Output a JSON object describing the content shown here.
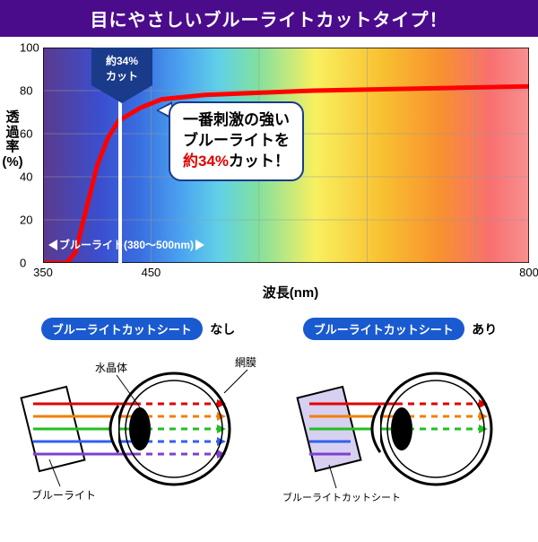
{
  "header": {
    "title": "目にやさしいブルーライトカットタイプ！"
  },
  "chart": {
    "type": "line",
    "ylabel_lines": [
      "透",
      "過",
      "率",
      "(%)"
    ],
    "xlabel": "波長(nm)",
    "xlim": [
      350,
      800
    ],
    "ylim": [
      0,
      100
    ],
    "xticks": [
      350,
      450,
      800
    ],
    "yticks": [
      0,
      20,
      40,
      60,
      80,
      100
    ],
    "yticks_grid": [
      0,
      20,
      40,
      60,
      80,
      100
    ],
    "xticks_grid": [
      350,
      450,
      550,
      650,
      750
    ],
    "curve_color": "#ff0000",
    "curve_points": [
      [
        350,
        0
      ],
      [
        365,
        0
      ],
      [
        372,
        0
      ],
      [
        380,
        5
      ],
      [
        390,
        25
      ],
      [
        400,
        45
      ],
      [
        410,
        58
      ],
      [
        420,
        66
      ],
      [
        440,
        72
      ],
      [
        460,
        76
      ],
      [
        500,
        78
      ],
      [
        550,
        79
      ],
      [
        600,
        80
      ],
      [
        700,
        81
      ],
      [
        800,
        82
      ]
    ],
    "white_line_x": 420,
    "arrow_badge": {
      "line1": "約34%",
      "line2": "カット"
    },
    "range_label": "ブルーライト(380〜500nm)",
    "callout": {
      "line1": "一番刺激の強い",
      "line2": "ブルーライトを",
      "line3_red": "約34%",
      "line3_black": "カット！"
    },
    "spectrum_stops": [
      [
        "#5b3a8e",
        0
      ],
      [
        "#3a4fd0",
        12
      ],
      [
        "#3a6fe0",
        20
      ],
      [
        "#4aa0f0",
        28
      ],
      [
        "#60d0e8",
        36
      ],
      [
        "#80e0a0",
        44
      ],
      [
        "#f8f060",
        56
      ],
      [
        "#f8c030",
        70
      ],
      [
        "#f89030",
        82
      ],
      [
        "#f87070",
        92
      ],
      [
        "#f89090",
        100
      ]
    ]
  },
  "diagrams": {
    "pill_color": "#1a5ad0",
    "left": {
      "pill": "ブルーライトカットシート",
      "suffix": "なし",
      "labels": {
        "lens": "水晶体",
        "retina": "網膜",
        "bluelight": "ブルーライト"
      },
      "has_filter": false
    },
    "right": {
      "pill": "ブルーライトカットシート",
      "suffix": "あり",
      "labels": {
        "filter": "ブルーライトカットシート"
      },
      "has_filter": true
    },
    "ray_colors": [
      "#e00000",
      "#f08000",
      "#20c020",
      "#3060f0",
      "#8040d0"
    ]
  }
}
